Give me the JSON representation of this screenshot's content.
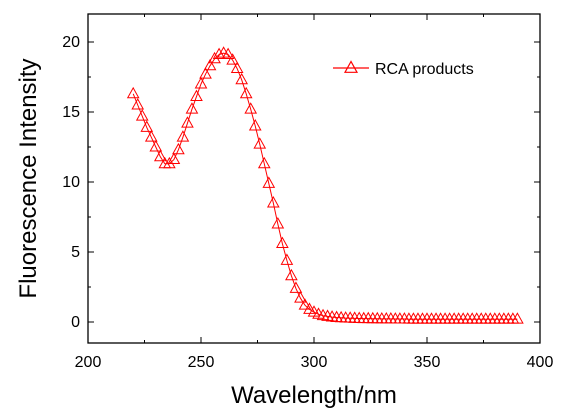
{
  "chart_data": {
    "type": "line",
    "xlabel": "Wavelength/nm",
    "ylabel": "Fluorescence Intensity",
    "xlim": [
      200,
      400
    ],
    "ylim": [
      -1.5,
      22
    ],
    "xticks": [
      200,
      250,
      300,
      350,
      400
    ],
    "yticks": [
      0,
      5,
      10,
      15,
      20
    ],
    "grid": false,
    "legend_position": "top-right",
    "series": [
      {
        "name": "RCA products",
        "color": "#ff0000",
        "marker": "open-triangle",
        "x": [
          220,
          222,
          224,
          226,
          228,
          230,
          232,
          234,
          236,
          238,
          240,
          242,
          244,
          246,
          248,
          250,
          252,
          254,
          256,
          258,
          260,
          262,
          264,
          266,
          268,
          270,
          272,
          274,
          276,
          278,
          280,
          282,
          284,
          286,
          288,
          290,
          292,
          294,
          296,
          298,
          300,
          302,
          304,
          306,
          308,
          310,
          312,
          314,
          316,
          318,
          320,
          322,
          324,
          326,
          328,
          330,
          332,
          334,
          336,
          338,
          340,
          342,
          344,
          346,
          348,
          350,
          352,
          354,
          356,
          358,
          360,
          362,
          364,
          366,
          368,
          370,
          372,
          374,
          376,
          378,
          380,
          382,
          384,
          386,
          388,
          390
        ],
        "y": [
          16.3,
          15.5,
          14.7,
          13.9,
          13.2,
          12.5,
          11.8,
          11.3,
          11.3,
          11.6,
          12.3,
          13.2,
          14.2,
          15.2,
          16.1,
          17.0,
          17.7,
          18.3,
          18.8,
          19.1,
          19.2,
          19.1,
          18.7,
          18.1,
          17.3,
          16.3,
          15.2,
          14.0,
          12.7,
          11.3,
          9.9,
          8.5,
          7.0,
          5.6,
          4.4,
          3.3,
          2.4,
          1.7,
          1.2,
          0.9,
          0.7,
          0.55,
          0.45,
          0.4,
          0.35,
          0.32,
          0.3,
          0.28,
          0.27,
          0.26,
          0.25,
          0.24,
          0.24,
          0.23,
          0.23,
          0.22,
          0.22,
          0.22,
          0.21,
          0.21,
          0.21,
          0.2,
          0.2,
          0.2,
          0.2,
          0.2,
          0.2,
          0.2,
          0.2,
          0.2,
          0.2,
          0.2,
          0.2,
          0.2,
          0.2,
          0.2,
          0.2,
          0.2,
          0.2,
          0.2,
          0.2,
          0.2,
          0.2,
          0.2,
          0.2,
          0.2
        ]
      }
    ]
  }
}
